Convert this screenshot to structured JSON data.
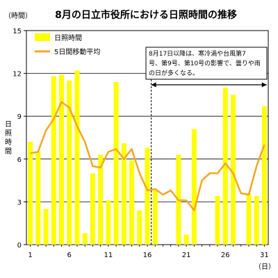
{
  "chart_data": {
    "type": "bar+line",
    "title": "8月の日立市役所における日照時間の推移",
    "y_unit_label": "（時間）",
    "x_unit_label": "（日）",
    "ylabel_chars": [
      "日",
      "照",
      "時",
      "間"
    ],
    "ylim": [
      0,
      15
    ],
    "y_ticks": [
      "0",
      "3",
      "6",
      "9",
      "12",
      "15"
    ],
    "x": [
      1,
      2,
      3,
      4,
      5,
      6,
      7,
      8,
      9,
      10,
      11,
      12,
      13,
      14,
      15,
      16,
      17,
      18,
      19,
      20,
      21,
      22,
      23,
      24,
      25,
      26,
      27,
      28,
      29,
      30,
      31
    ],
    "x_tick_labels": [
      "1",
      "6",
      "11",
      "16",
      "21",
      "26",
      "31"
    ],
    "series": [
      {
        "name": "日照時間",
        "type": "bar",
        "color": "#ffff00",
        "values": [
          7.2,
          6.5,
          2.5,
          11.8,
          11.9,
          11.5,
          12.2,
          0.8,
          5.0,
          6.3,
          3.1,
          11.4,
          7.1,
          5.9,
          2.4,
          6.8,
          3.8,
          0.0,
          0.0,
          6.3,
          0.7,
          8.1,
          0.0,
          0.0,
          3.4,
          11.0,
          10.5,
          0.0,
          3.6,
          3.4,
          9.7
        ]
      },
      {
        "name": "5日間移動平均",
        "type": "line",
        "color": "#f5a623",
        "values": [
          6.4,
          6.5,
          8.0,
          8.8,
          10.0,
          9.6,
          8.3,
          7.2,
          5.5,
          5.4,
          6.5,
          6.7,
          6.0,
          6.7,
          5.0,
          3.8,
          3.9,
          3.5,
          3.8,
          3.1,
          3.1,
          2.4,
          4.5,
          5.0,
          5.0,
          5.7,
          5.0,
          3.6,
          3.5,
          5.5,
          7.0
        ]
      }
    ],
    "annotation": {
      "lines": [
        "8月17日以降は、寒冷渦や台風第7",
        "号、第9号、第10号の影響で、曇りや雨",
        "の日が多くなる。"
      ],
      "from_day": 17,
      "to_day": 31
    },
    "grid": "horizontal",
    "legend_position": "top-left"
  }
}
